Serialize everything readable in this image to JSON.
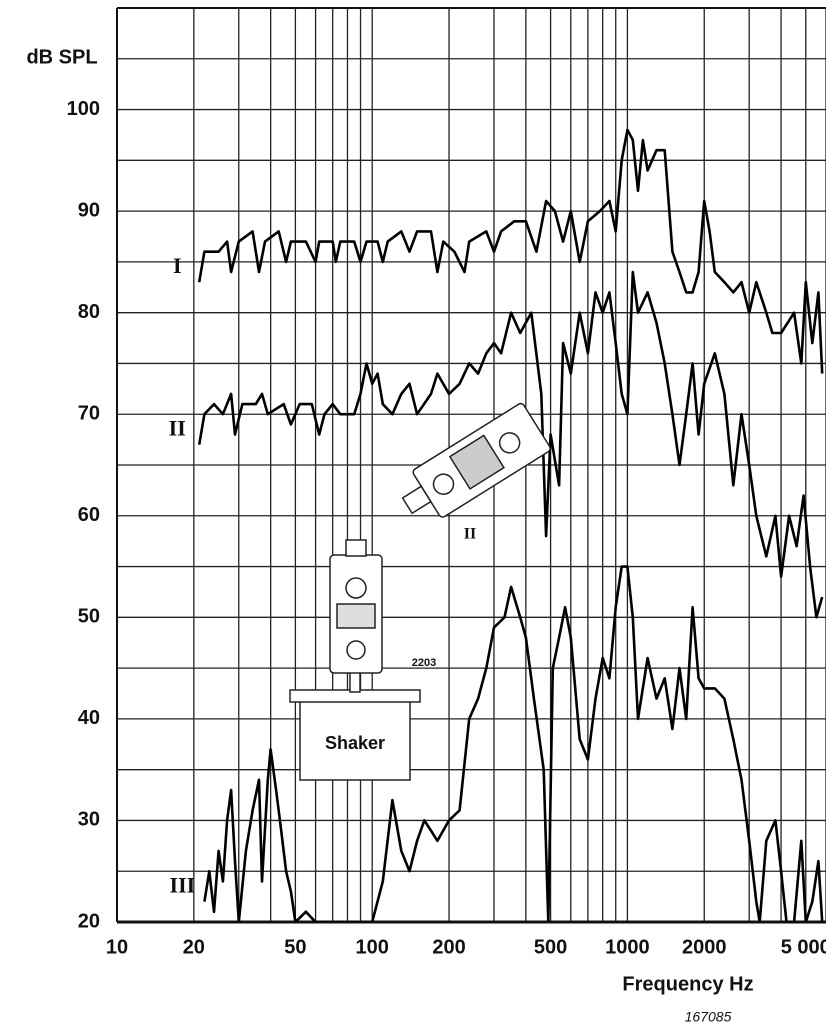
{
  "chart_data": {
    "type": "line",
    "ylabel": "dB SPL",
    "xlabel": "Frequency Hz",
    "figure_number": "167085",
    "xscale": "log",
    "xlim": [
      10,
      6000
    ],
    "ylim": [
      20,
      110
    ],
    "xticks": [
      10,
      20,
      50,
      100,
      200,
      500,
      1000,
      2000,
      {
        "value": 5000,
        "label": "5 000"
      }
    ],
    "yticks": [
      20,
      30,
      40,
      50,
      60,
      70,
      80,
      90,
      100
    ],
    "x_minor_grid": [
      30,
      40,
      60,
      70,
      80,
      90,
      300,
      400,
      600,
      700,
      800,
      900,
      3000,
      4000,
      6000
    ],
    "y_minor_grid": [
      25,
      35,
      45,
      55,
      65,
      75,
      85,
      95,
      105,
      110
    ],
    "grid": true,
    "annotations": [
      "Shaker",
      "2203",
      "II"
    ],
    "series": [
      {
        "name": "I",
        "color": "#000000",
        "x": [
          21,
          22,
          25,
          27,
          28,
          30,
          34,
          36,
          38,
          43,
          46,
          48,
          55,
          60,
          62,
          70,
          72,
          75,
          85,
          90,
          95,
          105,
          110,
          115,
          130,
          140,
          150,
          170,
          180,
          190,
          210,
          230,
          240,
          280,
          300,
          320,
          360,
          400,
          440,
          480,
          520,
          560,
          600,
          650,
          700,
          780,
          850,
          900,
          950,
          1000,
          1050,
          1100,
          1150,
          1200,
          1300,
          1400,
          1500,
          1600,
          1700,
          1800,
          1900,
          2000,
          2100,
          2200,
          2400,
          2600,
          2800,
          3000,
          3200,
          3500,
          3700,
          4000,
          4500,
          4800,
          5000,
          5300,
          5600,
          5800
        ],
        "values": [
          83,
          86,
          86,
          87,
          84,
          87,
          88,
          84,
          87,
          88,
          85,
          87,
          87,
          85,
          87,
          87,
          85,
          87,
          87,
          85,
          87,
          87,
          85,
          87,
          88,
          86,
          88,
          88,
          84,
          87,
          86,
          84,
          87,
          88,
          86,
          88,
          89,
          89,
          86,
          91,
          90,
          87,
          90,
          85,
          89,
          90,
          91,
          88,
          95,
          98,
          97,
          92,
          97,
          94,
          96,
          96,
          86,
          84,
          82,
          82,
          84,
          91,
          88,
          84,
          83,
          82,
          83,
          80,
          83,
          80,
          78,
          78,
          80,
          75,
          83,
          77,
          82,
          74
        ]
      },
      {
        "name": "II",
        "color": "#000000",
        "x": [
          21,
          22,
          24,
          26,
          28,
          29,
          31,
          35,
          37,
          39,
          45,
          48,
          52,
          58,
          62,
          65,
          70,
          75,
          85,
          90,
          95,
          100,
          105,
          110,
          120,
          130,
          140,
          150,
          170,
          180,
          200,
          220,
          240,
          260,
          280,
          300,
          320,
          350,
          380,
          420,
          460,
          480,
          500,
          540,
          560,
          600,
          650,
          700,
          750,
          800,
          850,
          900,
          950,
          1000,
          1050,
          1100,
          1200,
          1300,
          1400,
          1500,
          1600,
          1700,
          1800,
          1900,
          2000,
          2200,
          2400,
          2600,
          2800,
          3000,
          3200,
          3500,
          3800,
          4000,
          4300,
          4600,
          4900,
          5200,
          5500,
          5800
        ],
        "values": [
          67,
          70,
          71,
          70,
          72,
          68,
          71,
          71,
          72,
          70,
          71,
          69,
          71,
          71,
          68,
          70,
          71,
          70,
          70,
          72,
          75,
          73,
          74,
          71,
          70,
          72,
          73,
          70,
          72,
          74,
          72,
          73,
          75,
          74,
          76,
          77,
          76,
          80,
          78,
          80,
          72,
          58,
          68,
          63,
          77,
          74,
          80,
          76,
          82,
          80,
          82,
          77,
          72,
          70,
          84,
          80,
          82,
          79,
          75,
          70,
          65,
          70,
          75,
          68,
          73,
          76,
          72,
          63,
          70,
          65,
          60,
          56,
          60,
          54,
          60,
          57,
          62,
          55,
          50,
          52
        ]
      },
      {
        "name": "III",
        "color": "#000000",
        "x": [
          22,
          23,
          24,
          25,
          26,
          27,
          28,
          29,
          30,
          32,
          34,
          36,
          37,
          39,
          40,
          42,
          44,
          46,
          48,
          50,
          55,
          60,
          70,
          80,
          90,
          100,
          110,
          120,
          130,
          140,
          150,
          160,
          170,
          180,
          200,
          220,
          240,
          260,
          280,
          300,
          330,
          350,
          380,
          400,
          430,
          470,
          490,
          510,
          540,
          570,
          600,
          650,
          700,
          750,
          800,
          850,
          900,
          950,
          1000,
          1050,
          1100,
          1200,
          1300,
          1400,
          1500,
          1600,
          1700,
          1800,
          1900,
          2000,
          2200,
          2400,
          2600,
          2800,
          3000,
          3200,
          3300,
          3500,
          3800,
          4000,
          4200,
          4500,
          4800,
          5000,
          5300,
          5600,
          5800
        ],
        "values": [
          22,
          25,
          21,
          27,
          24,
          30,
          33,
          26,
          20,
          27,
          31,
          34,
          24,
          34,
          37,
          33,
          29,
          25,
          23,
          20,
          21,
          20,
          20,
          20,
          20,
          20,
          24,
          32,
          27,
          25,
          28,
          30,
          29,
          28,
          30,
          31,
          40,
          42,
          45,
          49,
          50,
          53,
          50,
          48,
          42,
          35,
          20,
          45,
          48,
          51,
          48,
          38,
          36,
          42,
          46,
          44,
          51,
          55,
          55,
          50,
          40,
          46,
          42,
          44,
          39,
          45,
          40,
          51,
          44,
          43,
          43,
          42,
          38,
          34,
          28,
          22,
          20,
          28,
          30,
          25,
          20,
          20,
          28,
          20,
          22,
          26,
          20
        ]
      }
    ]
  }
}
